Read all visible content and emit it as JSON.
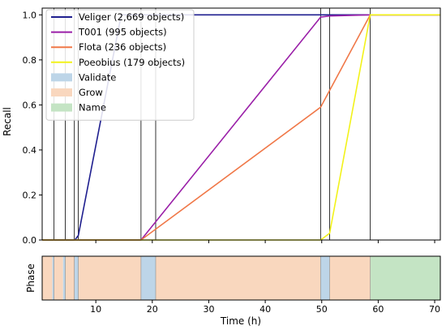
{
  "chart_data": {
    "type": "line",
    "xlabel": "Time (h)",
    "xlim": [
      0.5,
      71
    ],
    "x_ticks": [
      10,
      20,
      30,
      40,
      50,
      60,
      70
    ],
    "recall_panel": {
      "ylabel": "Recall",
      "ylim": [
        0,
        1.03
      ],
      "y_ticks": [
        0.0,
        0.2,
        0.4,
        0.6,
        0.8,
        1.0
      ],
      "y_tick_labels": [
        "0.0",
        "0.2",
        "0.4",
        "0.6",
        "0.8",
        "1.0"
      ],
      "series": [
        {
          "name": "Veliger (2,669 objects)",
          "color": "#1f1f8f",
          "points": [
            [
              0.5,
              0
            ],
            [
              6.3,
              0
            ],
            [
              6.9,
              0.02
            ],
            [
              14.5,
              1.0
            ],
            [
              71,
              1.0
            ]
          ]
        },
        {
          "name": "T001 (995 objects)",
          "color": "#9a1fa8",
          "points": [
            [
              0.5,
              0
            ],
            [
              18.0,
              0
            ],
            [
              49.8,
              0.99
            ],
            [
              51.4,
              0.995
            ],
            [
              58.6,
              1.0
            ],
            [
              71,
              1.0
            ]
          ]
        },
        {
          "name": "Flota (236 objects)",
          "color": "#f07848",
          "points": [
            [
              0.5,
              0
            ],
            [
              18.0,
              0
            ],
            [
              49.8,
              0.59
            ],
            [
              58.6,
              1.0
            ],
            [
              71,
              1.0
            ]
          ]
        },
        {
          "name": "Poeobius (179 objects)",
          "color": "#f2f21a",
          "points": [
            [
              0.5,
              0
            ],
            [
              49.8,
              0
            ],
            [
              51.4,
              0.03
            ],
            [
              58.6,
              1.0
            ],
            [
              71,
              1.0
            ]
          ]
        }
      ],
      "phase_boundaries": [
        2.6,
        4.6,
        6.2,
        6.9,
        18.0,
        20.6,
        49.8,
        51.4,
        58.6
      ]
    },
    "legend": {
      "placement": "top-left",
      "lines": [
        "Veliger (2,669 objects)",
        "T001 (995 objects)",
        "Flota (236 objects)",
        "Poeobius (179 objects)"
      ],
      "patches": [
        {
          "label": "Validate",
          "color": "#bdd5e8"
        },
        {
          "label": "Grow",
          "color": "#f9d7be"
        },
        {
          "label": "Name",
          "color": "#c4e4c4"
        }
      ]
    },
    "phase_panel": {
      "ylabel": "Phase",
      "segments": [
        {
          "phase": "Grow",
          "start": 0.5,
          "end": 2.3
        },
        {
          "phase": "Validate",
          "start": 2.3,
          "end": 2.6
        },
        {
          "phase": "Grow",
          "start": 2.6,
          "end": 4.2
        },
        {
          "phase": "Validate",
          "start": 4.2,
          "end": 4.6
        },
        {
          "phase": "Grow",
          "start": 4.6,
          "end": 6.2
        },
        {
          "phase": "Validate",
          "start": 6.2,
          "end": 6.9
        },
        {
          "phase": "Grow",
          "start": 6.9,
          "end": 18.0
        },
        {
          "phase": "Validate",
          "start": 18.0,
          "end": 20.6
        },
        {
          "phase": "Grow",
          "start": 20.6,
          "end": 49.8
        },
        {
          "phase": "Validate",
          "start": 49.8,
          "end": 51.4
        },
        {
          "phase": "Grow",
          "start": 51.4,
          "end": 58.6
        },
        {
          "phase": "Name",
          "start": 58.6,
          "end": 71
        }
      ],
      "colors": {
        "Validate": "#bdd5e8",
        "Grow": "#f9d7be",
        "Name": "#c4e4c4"
      }
    }
  }
}
